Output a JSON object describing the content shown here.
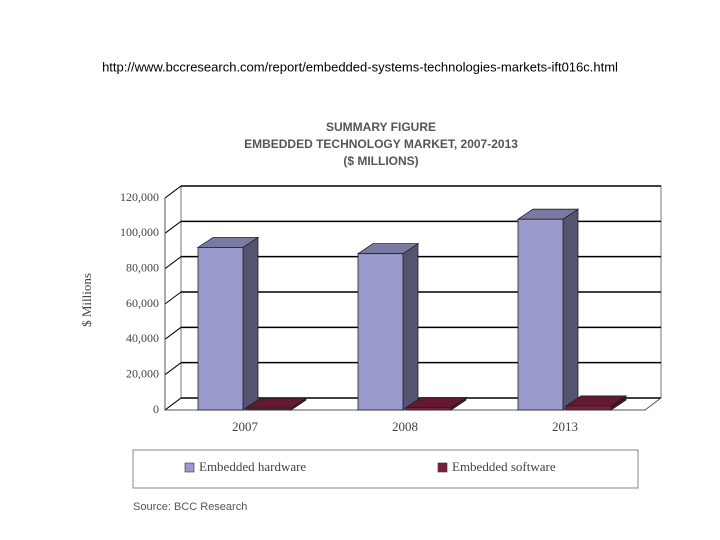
{
  "header": {
    "url": "http://www.bccresearch.com/report/embedded-systems-technologies-markets-ift016c.html"
  },
  "chart_data": {
    "type": "bar3d",
    "title": "SUMMARY FIGURE",
    "subtitle": [
      "EMBEDDED TECHNOLOGY MARKET, 2007-2013",
      "($ MILLIONS)"
    ],
    "y_label": "$ Millions",
    "source": "Source: BCC Research",
    "categories": [
      "2007",
      "2008",
      "2013"
    ],
    "series": [
      {
        "name": "Embedded hardware",
        "color": "#9999cc",
        "values": [
          92000,
          88500,
          108000
        ]
      },
      {
        "name": "Embedded software",
        "color": "#7a1f3d",
        "values": [
          1000,
          1400,
          2300
        ]
      }
    ],
    "ylim": [
      0,
      120000
    ],
    "yticks": [
      0,
      {
        "value": 20000,
        "label": "20,000"
      },
      {
        "value": 40000,
        "label": "40,000"
      },
      {
        "value": 60000,
        "label": "60,000"
      },
      {
        "value": 80000,
        "label": "80,000"
      },
      {
        "value": 100000,
        "label": "100,000"
      },
      {
        "value": 120000,
        "label": "120,000"
      }
    ],
    "grid": true
  }
}
